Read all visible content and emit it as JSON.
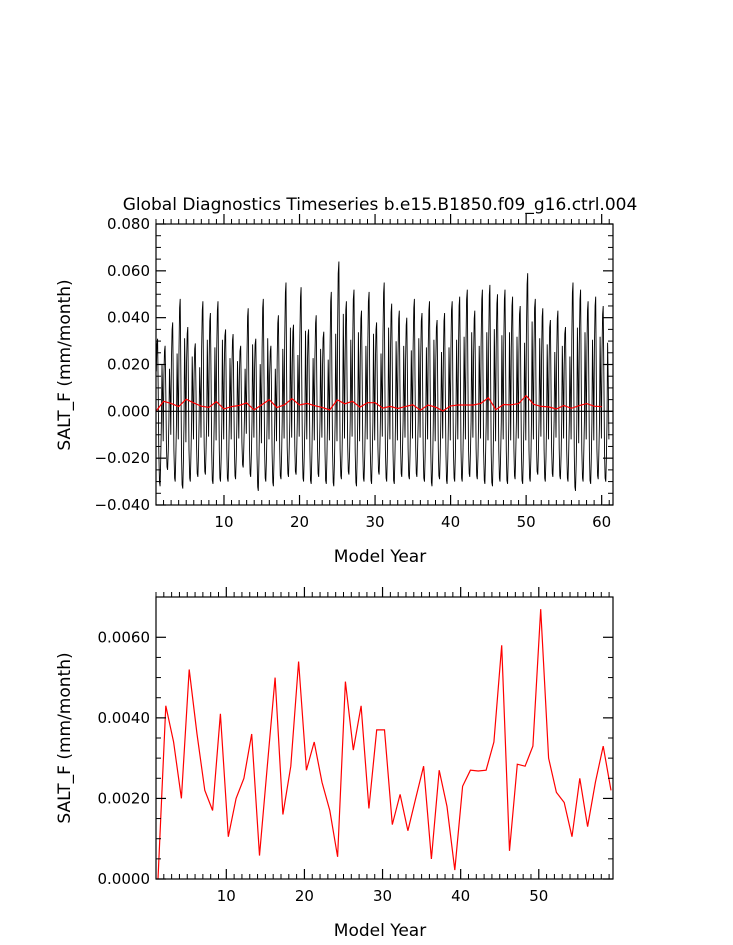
{
  "title": "Global Diagnostics Timeseries b.e15.B1850.f09_g16.ctrl.004",
  "chart_data": [
    {
      "type": "line",
      "xlabel": "Model Year",
      "ylabel": "SALT_F (mm/month)",
      "xlim": [
        1,
        61.5
      ],
      "ylim": [
        -0.04,
        0.08
      ],
      "x_ticks": [
        10,
        20,
        30,
        40,
        50,
        60
      ],
      "y_ticks": [
        -0.04,
        -0.02,
        0.0,
        0.02,
        0.04,
        0.06,
        0.08
      ],
      "y_tick_labels": [
        "−0.040",
        "−0.020",
        "0.000",
        "0.020",
        "0.040",
        "0.060",
        "0.080"
      ],
      "zero_line": true,
      "series": [
        {
          "color": "#000000",
          "monthly_peaks": [
            0.031,
            0.028,
            0.038,
            0.048,
            0.036,
            0.029,
            0.047,
            0.042,
            0.047,
            0.035,
            0.033,
            0.028,
            0.044,
            0.031,
            0.048,
            0.028,
            0.041,
            0.055,
            0.037,
            0.053,
            0.035,
            0.041,
            0.034,
            0.051,
            0.064,
            0.047,
            0.052,
            0.043,
            0.051,
            0.038,
            0.055,
            0.046,
            0.043,
            0.04,
            0.048,
            0.042,
            0.047,
            0.039,
            0.042,
            0.047,
            0.049,
            0.052,
            0.043,
            0.052,
            0.054,
            0.05,
            0.052,
            0.049,
            0.045,
            0.059,
            0.048,
            0.044,
            0.039,
            0.043,
            0.036,
            0.055,
            0.052,
            0.047,
            0.049,
            0.045
          ],
          "monthly_troughs": [
            -0.032,
            -0.025,
            -0.03,
            -0.033,
            -0.03,
            -0.028,
            -0.027,
            -0.031,
            -0.03,
            -0.03,
            -0.029,
            -0.024,
            -0.028,
            -0.034,
            -0.03,
            -0.032,
            -0.029,
            -0.028,
            -0.027,
            -0.03,
            -0.031,
            -0.028,
            -0.031,
            -0.032,
            -0.029,
            -0.027,
            -0.032,
            -0.03,
            -0.031,
            -0.027,
            -0.03,
            -0.031,
            -0.028,
            -0.029,
            -0.028,
            -0.03,
            -0.032,
            -0.029,
            -0.031,
            -0.03,
            -0.03,
            -0.028,
            -0.029,
            -0.031,
            -0.032,
            -0.03,
            -0.031,
            -0.029,
            -0.031,
            -0.03,
            -0.027,
            -0.03,
            -0.028,
            -0.029,
            -0.03,
            -0.034,
            -0.03,
            -0.031,
            -0.029,
            -0.03
          ]
        },
        {
          "color": "#ff0000",
          "x": [
            1,
            2,
            3,
            4,
            5,
            6,
            7,
            8,
            9,
            10,
            11,
            12,
            13,
            14,
            15,
            16,
            17,
            18,
            19,
            20,
            21,
            22,
            23,
            24,
            25,
            26,
            27,
            28,
            29,
            30,
            31,
            32,
            33,
            34,
            35,
            36,
            37,
            38,
            39,
            40,
            41,
            42,
            43,
            44,
            45,
            46,
            47,
            48,
            49,
            50,
            51,
            52,
            53,
            54,
            55,
            56,
            57,
            58,
            59,
            60
          ],
          "values": [
            0.0,
            0.0043,
            0.0034,
            0.002,
            0.0052,
            0.0036,
            0.0022,
            0.0017,
            0.0041,
            0.001,
            0.002,
            0.0025,
            0.0036,
            0.0006,
            0.0028,
            0.005,
            0.0016,
            0.0028,
            0.0054,
            0.0027,
            0.0034,
            0.0024,
            0.0017,
            0.0006,
            0.0049,
            0.0032,
            0.0043,
            0.0018,
            0.0037,
            0.0037,
            0.0014,
            0.0021,
            0.0012,
            0.002,
            0.0028,
            0.0005,
            0.0027,
            0.0018,
            0.0002,
            0.0023,
            0.0027,
            0.0027,
            0.0027,
            0.0034,
            0.0058,
            0.0007,
            0.0029,
            0.0028,
            0.0033,
            0.0067,
            0.003,
            0.0021,
            0.0019,
            0.001,
            0.0025,
            0.0013,
            0.0024,
            0.0033,
            0.0022,
            0.002
          ]
        }
      ]
    },
    {
      "type": "line",
      "xlabel": "Model Year",
      "ylabel": "SALT_F (mm/month)",
      "xlim": [
        1,
        59.5
      ],
      "ylim": [
        0.0,
        0.007
      ],
      "x_ticks": [
        10,
        20,
        30,
        40,
        50
      ],
      "y_ticks": [
        0.0,
        0.002,
        0.004,
        0.006
      ],
      "y_tick_labels": [
        "0.0000",
        "0.0020",
        "0.0040",
        "0.0060"
      ],
      "series": [
        {
          "color": "#ff0000",
          "x": [
            1.25,
            2.25,
            3.25,
            4.25,
            5.25,
            6.25,
            7.25,
            8.25,
            9.25,
            10.25,
            11.25,
            12.25,
            13.25,
            14.25,
            15.25,
            16.25,
            17.25,
            18.25,
            19.25,
            20.25,
            21.25,
            22.25,
            23.25,
            24.25,
            25.25,
            26.25,
            27.25,
            28.25,
            29.25,
            30.25,
            31.25,
            32.25,
            33.25,
            34.25,
            35.25,
            36.25,
            37.25,
            38.25,
            39.25,
            40.25,
            41.25,
            42.25,
            43.25,
            44.25,
            45.25,
            46.25,
            47.25,
            48.25,
            49.25,
            50.25,
            51.25,
            52.25,
            53.25,
            54.25,
            55.25,
            56.25,
            57.25,
            58.25,
            59.25
          ],
          "values": [
            0.0,
            0.0043,
            0.0034,
            0.002,
            0.0052,
            0.0036,
            0.0022,
            0.0017,
            0.0041,
            0.00105,
            0.002,
            0.0025,
            0.0036,
            0.00058,
            0.0028,
            0.005,
            0.0016,
            0.0028,
            0.0054,
            0.0027,
            0.0034,
            0.0024,
            0.0017,
            0.00055,
            0.0049,
            0.0032,
            0.0043,
            0.00175,
            0.0037,
            0.0037,
            0.00135,
            0.0021,
            0.0012,
            0.002,
            0.0028,
            0.0005,
            0.0027,
            0.0018,
            0.00022,
            0.0023,
            0.0027,
            0.00268,
            0.0027,
            0.0034,
            0.0058,
            0.0007,
            0.00285,
            0.0028,
            0.0033,
            0.0067,
            0.003,
            0.00215,
            0.0019,
            0.00105,
            0.0025,
            0.0013,
            0.0024,
            0.0033,
            0.0022
          ]
        }
      ]
    }
  ]
}
